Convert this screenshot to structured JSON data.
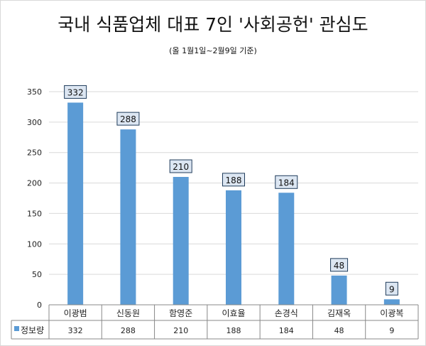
{
  "chart_data": {
    "type": "bar",
    "title": "국내 식품업체 대표 7인 '사회공헌' 관심도",
    "subtitle": "(올 1월1일~2월9일 기준)",
    "categories": [
      "이광범",
      "신동원",
      "함영준",
      "이효율",
      "손경식",
      "김재옥",
      "이광복"
    ],
    "series": [
      {
        "name": "정보량",
        "values": [
          332,
          288,
          210,
          188,
          184,
          48,
          9
        ]
      }
    ],
    "yticks": [
      "0",
      "50",
      "100",
      "150",
      "200",
      "250",
      "300",
      "350"
    ],
    "ylim": [
      0,
      350
    ],
    "grid": true,
    "legend": "data-table-left",
    "bar_color": "#5b9bd5"
  }
}
